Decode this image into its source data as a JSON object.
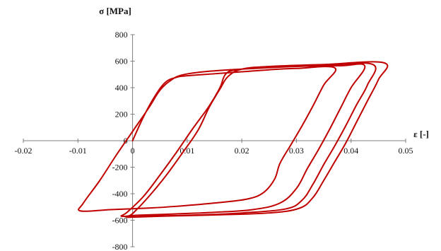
{
  "chart_data": {
    "type": "line",
    "title": "",
    "xlabel": "ε [-]",
    "ylabel": "σ [MPa]",
    "xlim": [
      -0.02,
      0.05
    ],
    "ylim": [
      -800,
      800
    ],
    "x_ticks": [
      -0.02,
      -0.01,
      0,
      0.01,
      0.02,
      0.03,
      0.04,
      0.05
    ],
    "y_ticks": [
      -800,
      -600,
      -400,
      -200,
      0,
      200,
      400,
      600,
      800
    ],
    "x_tick_labels": [
      "-0.02",
      "-0.01",
      "0",
      "0.01",
      "0.02",
      "0.03",
      "0.04",
      "0.05"
    ],
    "y_tick_labels": [
      "-800",
      "-600",
      "-400",
      "-200",
      "0",
      "200",
      "400",
      "600",
      "800"
    ],
    "grid": false,
    "legend": "none",
    "line_color": "#c00000",
    "series": [
      {
        "values": [
          [
            0,
            0
          ],
          [
            0.002,
            180
          ],
          [
            0.004,
            330
          ],
          [
            0.006,
            440
          ],
          [
            0.008,
            478
          ],
          [
            0.01,
            490
          ],
          [
            0.015,
            505
          ],
          [
            0.02,
            520
          ],
          [
            0.025,
            535
          ],
          [
            0.03,
            545
          ],
          [
            0.037,
            550
          ],
          [
            0.035,
            420
          ],
          [
            0.033,
            260
          ],
          [
            0.031,
            110
          ],
          [
            0.029,
            -30
          ],
          [
            0.027,
            -170
          ],
          [
            0.026,
            -290
          ],
          [
            0.024,
            -390
          ],
          [
            0.021,
            -440
          ],
          [
            0.015,
            -470
          ],
          [
            0.008,
            -495
          ],
          [
            0.003,
            -508
          ],
          [
            -0.004,
            -520
          ],
          [
            -0.0095,
            -530
          ],
          [
            -0.009,
            -470
          ],
          [
            -0.006,
            -300
          ],
          [
            -0.003,
            -110
          ],
          [
            0,
            70
          ],
          [
            0.003,
            250
          ],
          [
            0.005,
            380
          ],
          [
            0.007,
            455
          ],
          [
            0.009,
            495
          ],
          [
            0.013,
            520
          ],
          [
            0.02,
            540
          ],
          [
            0.03,
            560
          ],
          [
            0.038,
            565
          ],
          [
            0.0425,
            565
          ],
          [
            0.04,
            400
          ],
          [
            0.038,
            240
          ],
          [
            0.036,
            80
          ],
          [
            0.034,
            -70
          ],
          [
            0.032,
            -210
          ],
          [
            0.03,
            -360
          ],
          [
            0.027,
            -470
          ],
          [
            0.022,
            -520
          ],
          [
            0.015,
            -540
          ],
          [
            0.008,
            -552
          ],
          [
            0.001,
            -562
          ],
          [
            -0.002,
            -570
          ],
          [
            -0.001,
            -540
          ],
          [
            0.002,
            -420
          ],
          [
            0.005,
            -260
          ],
          [
            0.008,
            -90
          ],
          [
            0.011,
            90
          ],
          [
            0.014,
            260
          ],
          [
            0.016,
            400
          ],
          [
            0.017,
            500
          ],
          [
            0.019,
            535
          ],
          [
            0.025,
            555
          ],
          [
            0.035,
            568
          ],
          [
            0.044,
            575
          ],
          [
            0.043,
            420
          ],
          [
            0.041,
            270
          ],
          [
            0.039,
            110
          ],
          [
            0.037,
            -40
          ],
          [
            0.035,
            -180
          ],
          [
            0.033,
            -330
          ],
          [
            0.031,
            -450
          ],
          [
            0.028,
            -515
          ],
          [
            0.02,
            -545
          ],
          [
            0.012,
            -560
          ],
          [
            0.004,
            -568
          ],
          [
            -0.001,
            -575
          ],
          [
            0,
            -550
          ],
          [
            0.003,
            -420
          ],
          [
            0.006,
            -270
          ],
          [
            0.009,
            -100
          ],
          [
            0.012,
            80
          ],
          [
            0.014,
            250
          ],
          [
            0.016,
            390
          ],
          [
            0.0175,
            485
          ],
          [
            0.02,
            540
          ],
          [
            0.025,
            560
          ],
          [
            0.035,
            575
          ],
          [
            0.046,
            588
          ],
          [
            0.045,
            460
          ],
          [
            0.043,
            300
          ],
          [
            0.041,
            140
          ],
          [
            0.039,
            -20
          ],
          [
            0.037,
            -160
          ],
          [
            0.035,
            -300
          ],
          [
            0.033,
            -430
          ],
          [
            0.0305,
            -510
          ],
          [
            0.025,
            -545
          ],
          [
            0.015,
            -560
          ],
          [
            0.005,
            -570
          ],
          [
            -0.001,
            -578
          ]
        ]
      }
    ]
  }
}
